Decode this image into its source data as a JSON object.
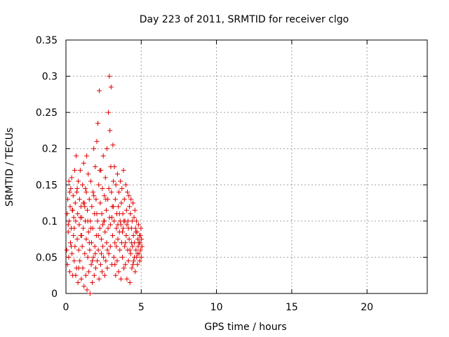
{
  "chart_data": {
    "type": "scatter",
    "title": "Day 223 of 2011, SRMTID for receiver clgo",
    "xlabel": "GPS time / hours",
    "ylabel": "SRMTID / TECUs",
    "xlim": [
      0,
      24
    ],
    "ylim": [
      0,
      0.35
    ],
    "xticks": [
      0,
      5,
      10,
      15,
      20
    ],
    "xtick_labels": [
      "0",
      "5",
      "10",
      "15",
      "20"
    ],
    "yticks": [
      0,
      0.05,
      0.1,
      0.15,
      0.2,
      0.25,
      0.3,
      0.35
    ],
    "ytick_labels": [
      "0",
      "0.05",
      "0.1",
      "0.15",
      "0.2",
      "0.25",
      "0.3",
      "0.35"
    ],
    "grid": true,
    "legend": "none",
    "marker": "plus",
    "color": "#e00000",
    "series": [
      {
        "points": [
          [
            0.05,
            0.06
          ],
          [
            0.08,
            0.11
          ],
          [
            0.1,
            0.04
          ],
          [
            0.12,
            0.13
          ],
          [
            0.15,
            0.085
          ],
          [
            0.18,
            0.05
          ],
          [
            0.2,
            0.155
          ],
          [
            0.22,
            0.1
          ],
          [
            0.25,
            0.03
          ],
          [
            0.28,
            0.12
          ],
          [
            0.3,
            0.07
          ],
          [
            0.32,
            0.145
          ],
          [
            0.35,
            0.09
          ],
          [
            0.38,
            0.16
          ],
          [
            0.4,
            0.055
          ],
          [
            0.42,
            0.115
          ],
          [
            0.45,
            0.025
          ],
          [
            0.48,
            0.135
          ],
          [
            0.5,
            0.08
          ],
          [
            0.52,
            0.105
          ],
          [
            0.55,
            0.045
          ],
          [
            0.58,
            0.17
          ],
          [
            0.6,
            0.065
          ],
          [
            0.62,
            0.125
          ],
          [
            0.65,
            0.1
          ],
          [
            0.68,
            0.19
          ],
          [
            0.7,
            0.035
          ],
          [
            0.72,
            0.14
          ],
          [
            0.75,
            0.075
          ],
          [
            0.78,
            0.11
          ],
          [
            0.8,
            0.015
          ],
          [
            0.82,
            0.155
          ],
          [
            0.85,
            0.06
          ],
          [
            0.88,
            0.095
          ],
          [
            0.9,
            0.13
          ],
          [
            0.92,
            0.045
          ],
          [
            0.95,
            0.17
          ],
          [
            0.98,
            0.08
          ],
          [
            1.0,
            0.12
          ],
          [
            1.02,
            0.02
          ],
          [
            1.05,
            0.105
          ],
          [
            1.08,
            0.065
          ],
          [
            1.1,
            0.15
          ],
          [
            1.12,
            0.035
          ],
          [
            1.15,
            0.09
          ],
          [
            1.18,
            0.18
          ],
          [
            1.2,
            0.01
          ],
          [
            1.22,
            0.125
          ],
          [
            1.25,
            0.055
          ],
          [
            1.28,
            0.1
          ],
          [
            1.3,
            0.145
          ],
          [
            1.32,
            0.025
          ],
          [
            1.35,
            0.075
          ],
          [
            1.38,
            0.19
          ],
          [
            1.4,
            0.005
          ],
          [
            1.42,
            0.115
          ],
          [
            1.45,
            0.05
          ],
          [
            1.48,
            0.165
          ],
          [
            1.5,
            0.085
          ],
          [
            1.52,
            0.03
          ],
          [
            1.55,
            0.13
          ],
          [
            1.58,
            0.06
          ],
          [
            1.6,
            0.0
          ],
          [
            1.62,
            0.1
          ],
          [
            1.65,
            0.155
          ],
          [
            1.68,
            0.04
          ],
          [
            1.7,
            0.07
          ],
          [
            1.72,
            0.12
          ],
          [
            1.75,
            0.015
          ],
          [
            1.78,
            0.09
          ],
          [
            1.8,
            0.14
          ],
          [
            1.82,
            0.05
          ],
          [
            1.85,
            0.2
          ],
          [
            1.88,
            0.025
          ],
          [
            1.9,
            0.11
          ],
          [
            1.92,
            0.065
          ],
          [
            1.95,
            0.175
          ],
          [
            1.98,
            0.035
          ],
          [
            2.0,
            0.13
          ],
          [
            2.02,
            0.08
          ],
          [
            2.05,
            0.21
          ],
          [
            2.08,
            0.045
          ],
          [
            2.1,
            0.1
          ],
          [
            2.12,
            0.235
          ],
          [
            2.15,
            0.06
          ],
          [
            2.18,
            0.15
          ],
          [
            2.2,
            0.02
          ],
          [
            2.22,
            0.28
          ],
          [
            2.25,
            0.09
          ],
          [
            2.28,
            0.125
          ],
          [
            2.3,
            0.04
          ],
          [
            2.32,
            0.17
          ],
          [
            2.35,
            0.075
          ],
          [
            2.38,
            0.11
          ],
          [
            2.4,
            0.03
          ],
          [
            2.42,
            0.145
          ],
          [
            2.45,
            0.065
          ],
          [
            2.48,
            0.19
          ],
          [
            2.5,
            0.05
          ],
          [
            2.52,
            0.1
          ],
          [
            2.55,
            0.135
          ],
          [
            2.58,
            0.025
          ],
          [
            2.6,
            0.085
          ],
          [
            2.62,
            0.16
          ],
          [
            2.65,
            0.045
          ],
          [
            2.68,
            0.115
          ],
          [
            2.7,
            0.07
          ],
          [
            2.72,
            0.2
          ],
          [
            2.75,
            0.035
          ],
          [
            2.78,
            0.13
          ],
          [
            2.8,
            0.09
          ],
          [
            2.82,
            0.25
          ],
          [
            2.85,
            0.055
          ],
          [
            2.88,
            0.3
          ],
          [
            2.9,
            0.105
          ],
          [
            2.92,
            0.225
          ],
          [
            2.95,
            0.065
          ],
          [
            2.98,
            0.175
          ],
          [
            3.0,
            0.285
          ],
          [
            3.02,
            0.14
          ],
          [
            3.05,
            0.04
          ],
          [
            3.08,
            0.12
          ],
          [
            3.1,
            0.08
          ],
          [
            3.12,
            0.205
          ],
          [
            3.15,
            0.155
          ],
          [
            3.18,
            0.05
          ],
          [
            3.2,
            0.1
          ],
          [
            3.22,
            0.175
          ],
          [
            3.25,
            0.07
          ],
          [
            3.28,
            0.13
          ],
          [
            3.3,
            0.025
          ],
          [
            3.32,
            0.15
          ],
          [
            3.35,
            0.09
          ],
          [
            3.38,
            0.11
          ],
          [
            3.4,
            0.045
          ],
          [
            3.42,
            0.165
          ],
          [
            3.45,
            0.075
          ],
          [
            3.48,
            0.12
          ],
          [
            3.5,
            0.03
          ],
          [
            3.52,
            0.14
          ],
          [
            3.55,
            0.085
          ],
          [
            3.58,
            0.06
          ],
          [
            3.6,
            0.1
          ],
          [
            3.62,
            0.155
          ],
          [
            3.65,
            0.02
          ],
          [
            3.68,
            0.125
          ],
          [
            3.7,
            0.07
          ],
          [
            3.72,
            0.145
          ],
          [
            3.75,
            0.05
          ],
          [
            3.78,
            0.11
          ],
          [
            3.8,
            0.09
          ],
          [
            3.82,
            0.17
          ],
          [
            3.85,
            0.035
          ],
          [
            3.88,
            0.13
          ],
          [
            3.9,
            0.065
          ],
          [
            3.92,
            0.1
          ],
          [
            3.95,
            0.04
          ],
          [
            3.98,
            0.15
          ],
          [
            4.0,
            0.08
          ],
          [
            4.02,
            0.115
          ],
          [
            4.05,
            0.02
          ],
          [
            4.08,
            0.14
          ],
          [
            4.1,
            0.06
          ],
          [
            4.12,
            0.1
          ],
          [
            4.15,
            0.045
          ],
          [
            4.18,
            0.135
          ],
          [
            4.2,
            0.075
          ],
          [
            4.22,
            0.12
          ],
          [
            4.25,
            0.015
          ],
          [
            4.28,
            0.11
          ],
          [
            4.3,
            0.055
          ],
          [
            4.32,
            0.13
          ],
          [
            4.35,
            0.09
          ],
          [
            4.38,
            0.035
          ],
          [
            4.4,
            0.1
          ],
          [
            4.42,
            0.065
          ],
          [
            4.45,
            0.125
          ],
          [
            4.48,
            0.08
          ],
          [
            4.5,
            0.045
          ],
          [
            4.52,
            0.105
          ],
          [
            4.55,
            0.07
          ],
          [
            4.58,
            0.115
          ],
          [
            4.6,
            0.03
          ],
          [
            4.62,
            0.09
          ],
          [
            4.65,
            0.06
          ],
          [
            4.68,
            0.1
          ],
          [
            4.7,
            0.05
          ],
          [
            4.72,
            0.085
          ],
          [
            4.75,
            0.04
          ],
          [
            4.78,
            0.075
          ],
          [
            4.8,
            0.065
          ],
          [
            4.82,
            0.095
          ],
          [
            4.85,
            0.055
          ],
          [
            4.88,
            0.08
          ],
          [
            4.9,
            0.045
          ],
          [
            4.92,
            0.07
          ],
          [
            4.95,
            0.06
          ],
          [
            4.98,
            0.09
          ],
          [
            5.0,
            0.05
          ],
          [
            5.02,
            0.075
          ],
          [
            0.15,
            0.095
          ],
          [
            0.45,
            0.115
          ],
          [
            0.75,
            0.145
          ],
          [
            1.05,
            0.08
          ],
          [
            1.35,
            0.14
          ],
          [
            1.65,
            0.09
          ],
          [
            1.95,
            0.055
          ],
          [
            2.25,
            0.17
          ],
          [
            2.55,
            0.1
          ],
          [
            2.85,
            0.145
          ],
          [
            3.15,
            0.12
          ],
          [
            3.45,
            0.095
          ],
          [
            3.75,
            0.085
          ],
          [
            4.05,
            0.095
          ],
          [
            4.35,
            0.07
          ],
          [
            4.65,
            0.085
          ],
          [
            4.95,
            0.08
          ],
          [
            0.35,
            0.065
          ],
          [
            0.65,
            0.025
          ],
          [
            0.95,
            0.105
          ],
          [
            1.25,
            0.12
          ],
          [
            1.55,
            0.07
          ],
          [
            1.85,
            0.135
          ],
          [
            2.15,
            0.08
          ],
          [
            2.45,
            0.095
          ],
          [
            2.75,
            0.06
          ],
          [
            3.05,
            0.105
          ],
          [
            3.35,
            0.065
          ],
          [
            3.65,
            0.095
          ],
          [
            3.95,
            0.07
          ],
          [
            4.25,
            0.06
          ],
          [
            4.55,
            0.05
          ],
          [
            4.85,
            0.07
          ],
          [
            0.25,
            0.14
          ],
          [
            0.55,
            0.09
          ],
          [
            0.85,
            0.035
          ],
          [
            1.15,
            0.125
          ],
          [
            1.45,
            0.1
          ],
          [
            1.75,
            0.045
          ],
          [
            2.05,
            0.11
          ],
          [
            2.35,
            0.055
          ],
          [
            2.65,
            0.13
          ],
          [
            2.95,
            0.095
          ],
          [
            3.25,
            0.04
          ],
          [
            3.55,
            0.11
          ],
          [
            3.85,
            0.1
          ],
          [
            4.15,
            0.09
          ],
          [
            4.45,
            0.04
          ],
          [
            4.75,
            0.055
          ],
          [
            5.05,
            0.065
          ]
        ]
      }
    ]
  }
}
